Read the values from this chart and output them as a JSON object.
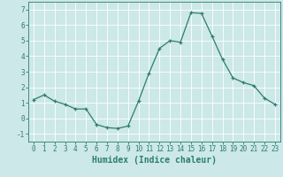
{
  "x": [
    0,
    1,
    2,
    3,
    4,
    5,
    6,
    7,
    8,
    9,
    10,
    11,
    12,
    13,
    14,
    15,
    16,
    17,
    18,
    19,
    20,
    21,
    22,
    23
  ],
  "y": [
    1.2,
    1.5,
    1.1,
    0.9,
    0.6,
    0.6,
    -0.4,
    -0.6,
    -0.65,
    -0.5,
    1.1,
    2.9,
    4.5,
    5.0,
    4.9,
    6.8,
    6.75,
    5.3,
    3.8,
    2.6,
    2.3,
    2.1,
    1.3,
    0.9
  ],
  "line_color": "#2e7d6e",
  "marker": "+",
  "marker_size": 3,
  "linewidth": 0.9,
  "xlabel": "Humidex (Indice chaleur)",
  "ylim": [
    -1.5,
    7.5
  ],
  "xlim": [
    -0.5,
    23.5
  ],
  "yticks": [
    -1,
    0,
    1,
    2,
    3,
    4,
    5,
    6,
    7
  ],
  "xticks": [
    0,
    1,
    2,
    3,
    4,
    5,
    6,
    7,
    8,
    9,
    10,
    11,
    12,
    13,
    14,
    15,
    16,
    17,
    18,
    19,
    20,
    21,
    22,
    23
  ],
  "bg_color": "#cce8e8",
  "grid_color": "#ffffff",
  "tick_label_fontsize": 5.5,
  "xlabel_fontsize": 7,
  "text_color": "#2e7d6e"
}
